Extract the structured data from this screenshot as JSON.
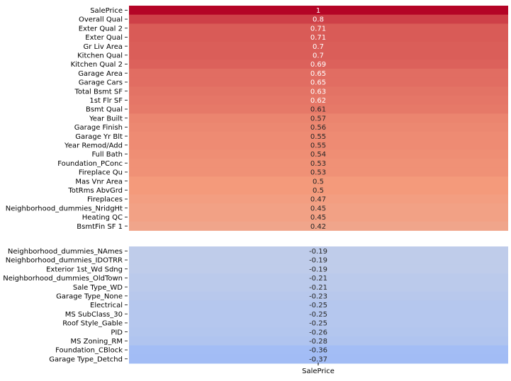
{
  "chart_data": {
    "type": "heatmap",
    "xlabel": "SalePrice",
    "colormap": "coolwarm",
    "groups": [
      {
        "rows": [
          {
            "label": "SalePrice",
            "value": 1
          },
          {
            "label": "Overall Qual",
            "value": 0.8
          },
          {
            "label": "Exter Qual 2",
            "value": 0.71
          },
          {
            "label": "Exter Qual",
            "value": 0.71
          },
          {
            "label": "Gr Liv Area",
            "value": 0.7
          },
          {
            "label": "Kitchen Qual",
            "value": 0.7
          },
          {
            "label": "Kitchen Qual 2",
            "value": 0.69
          },
          {
            "label": "Garage Area",
            "value": 0.65
          },
          {
            "label": "Garage Cars",
            "value": 0.65
          },
          {
            "label": "Total Bsmt SF",
            "value": 0.63
          },
          {
            "label": "1st Flr SF",
            "value": 0.62
          },
          {
            "label": "Bsmt Qual",
            "value": 0.61
          },
          {
            "label": "Year Built",
            "value": 0.57
          },
          {
            "label": "Garage Finish",
            "value": 0.56
          },
          {
            "label": "Garage Yr Blt",
            "value": 0.55
          },
          {
            "label": "Year Remod/Add",
            "value": 0.55
          },
          {
            "label": "Full Bath",
            "value": 0.54
          },
          {
            "label": "Foundation_PConc",
            "value": 0.53
          },
          {
            "label": "Fireplace Qu",
            "value": 0.53
          },
          {
            "label": "Mas Vnr Area",
            "value": 0.5
          },
          {
            "label": "TotRms AbvGrd",
            "value": 0.5
          },
          {
            "label": "Fireplaces",
            "value": 0.47
          },
          {
            "label": "Neighborhood_dummies_NridgHt",
            "value": 0.45
          },
          {
            "label": "Heating QC",
            "value": 0.45
          },
          {
            "label": "BsmtFin SF 1",
            "value": 0.42
          }
        ]
      },
      {
        "rows": [
          {
            "label": "Neighborhood_dummies_NAmes",
            "value": -0.19
          },
          {
            "label": "Neighborhood_dummies_IDOTRR",
            "value": -0.19
          },
          {
            "label": "Exterior 1st_Wd Sdng",
            "value": -0.19
          },
          {
            "label": "Neighborhood_dummies_OldTown",
            "value": -0.21
          },
          {
            "label": "Sale Type_WD ",
            "value": -0.21
          },
          {
            "label": "Garage Type_None",
            "value": -0.23
          },
          {
            "label": "Electrical",
            "value": -0.25
          },
          {
            "label": "MS SubClass_30",
            "value": -0.25
          },
          {
            "label": "Roof Style_Gable",
            "value": -0.25
          },
          {
            "label": "PID",
            "value": -0.26
          },
          {
            "label": "MS Zoning_RM",
            "value": -0.28
          },
          {
            "label": "Foundation_CBlock",
            "value": -0.36
          },
          {
            "label": "Garage Type_Detchd",
            "value": -0.37
          }
        ]
      }
    ]
  }
}
